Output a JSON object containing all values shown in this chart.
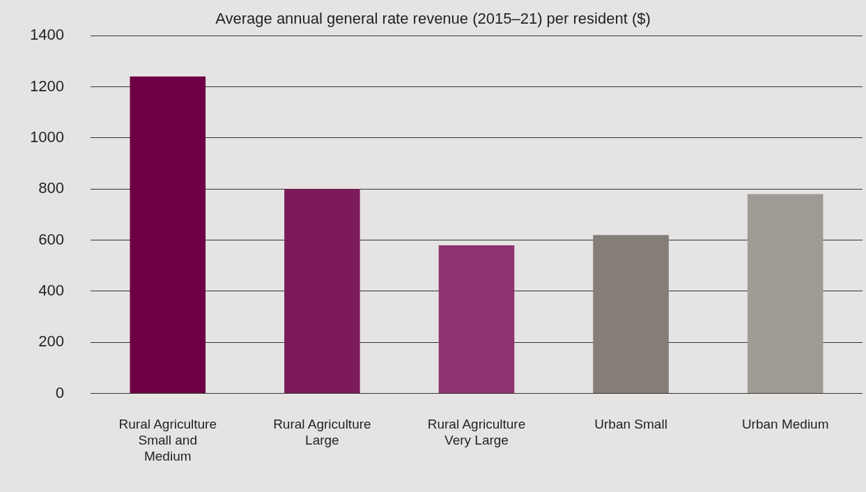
{
  "chart_data": {
    "type": "bar",
    "title": "Average annual general rate revenue (2015–21) per resident ($)",
    "categories": [
      "Rural Agriculture\nSmall and\nMedium",
      "Rural Agriculture\nLarge",
      "Rural Agriculture\nVery Large",
      "Urban Small",
      "Urban Medium"
    ],
    "values": [
      1240,
      800,
      580,
      620,
      780
    ],
    "colors": [
      "#6d0044",
      "#7d1a5c",
      "#8e3370",
      "#857d78",
      "#a09a95"
    ],
    "ylim": [
      0,
      1400
    ],
    "yticks": [
      0,
      200,
      400,
      600,
      800,
      1000,
      1200,
      1400
    ],
    "grid": "y",
    "legend": false
  }
}
